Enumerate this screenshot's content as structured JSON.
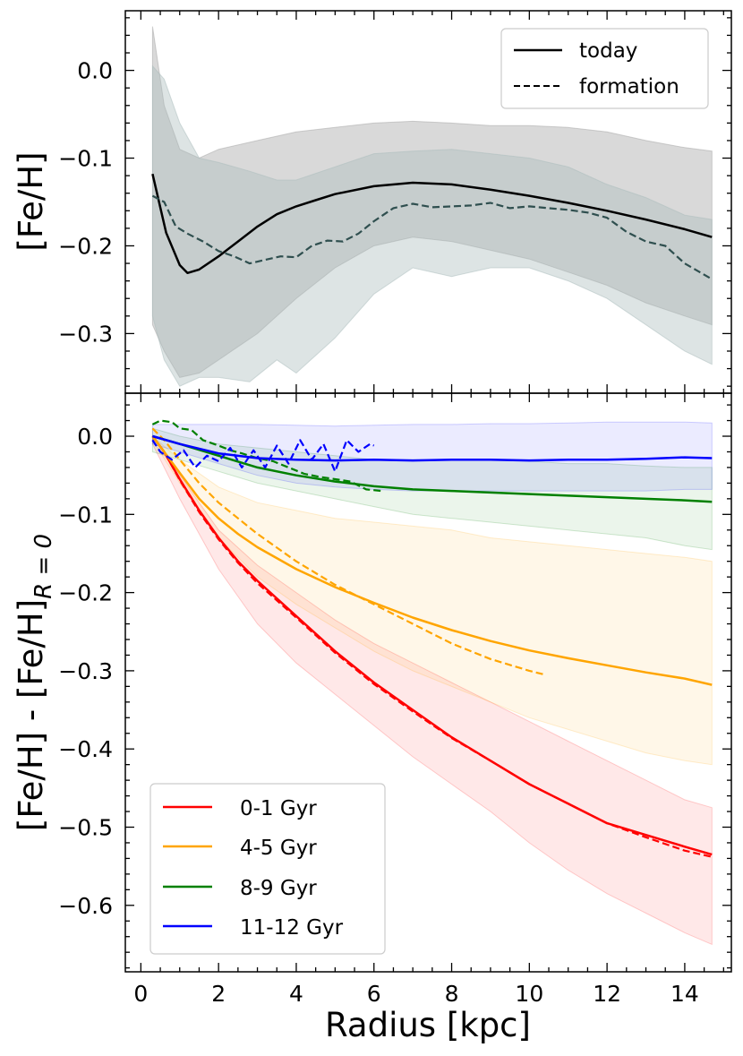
{
  "chart_data": [
    {
      "type": "line",
      "ylabel": "[Fe/H]",
      "xlim": [
        -0.4,
        15.2
      ],
      "ylim": [
        -0.368,
        0.068
      ],
      "xticks": [
        0,
        2,
        4,
        6,
        8,
        10,
        12,
        14
      ],
      "yticks": [
        {
          "value": 0.0,
          "label": "0.0"
        },
        {
          "value": -0.1,
          "label": "−0.1"
        },
        {
          "value": -0.2,
          "label": "−0.2"
        },
        {
          "value": -0.3,
          "label": "−0.3"
        }
      ],
      "grid": false,
      "legend": {
        "position": "upper-right",
        "entries": [
          {
            "label": "today",
            "color": "#000000",
            "dash": "solid"
          },
          {
            "label": "formation",
            "color": "#000000",
            "dash": "dashed"
          }
        ]
      },
      "bands": [
        {
          "color": "#aaaaaa",
          "opacity": 0.45,
          "x": [
            0.3,
            0.6,
            1.0,
            1.5,
            2.0,
            3.0,
            4.0,
            5.0,
            6.0,
            7.0,
            8.0,
            9.0,
            10.0,
            11.0,
            12.0,
            13.0,
            14.0,
            14.7
          ],
          "upper": [
            0.05,
            -0.04,
            -0.09,
            -0.1,
            -0.09,
            -0.08,
            -0.07,
            -0.065,
            -0.06,
            -0.058,
            -0.06,
            -0.063,
            -0.063,
            -0.065,
            -0.07,
            -0.08,
            -0.088,
            -0.092
          ],
          "lower": [
            -0.29,
            -0.32,
            -0.35,
            -0.345,
            -0.33,
            -0.3,
            -0.26,
            -0.225,
            -0.2,
            -0.19,
            -0.195,
            -0.205,
            -0.215,
            -0.23,
            -0.245,
            -0.265,
            -0.28,
            -0.29
          ]
        },
        {
          "color": "#aabbbb",
          "opacity": 0.4,
          "x": [
            0.3,
            0.6,
            1.0,
            1.5,
            2.0,
            2.8,
            3.5,
            4.0,
            5.0,
            6.0,
            7.0,
            8.0,
            9.0,
            10.0,
            11.0,
            12.0,
            13.0,
            14.0,
            14.7
          ],
          "upper": [
            0.005,
            -0.01,
            -0.06,
            -0.1,
            -0.105,
            -0.115,
            -0.125,
            -0.125,
            -0.11,
            -0.095,
            -0.092,
            -0.09,
            -0.095,
            -0.1,
            -0.11,
            -0.13,
            -0.145,
            -0.165,
            -0.17
          ],
          "lower": [
            -0.28,
            -0.33,
            -0.36,
            -0.35,
            -0.35,
            -0.355,
            -0.33,
            -0.345,
            -0.305,
            -0.255,
            -0.225,
            -0.235,
            -0.225,
            -0.225,
            -0.24,
            -0.26,
            -0.29,
            -0.32,
            -0.335
          ]
        }
      ],
      "series": [
        {
          "name": "today",
          "color": "#000000",
          "dash": "solid",
          "x": [
            0.3,
            0.65,
            1.0,
            1.2,
            1.5,
            2.0,
            2.5,
            3.0,
            3.5,
            4.0,
            4.5,
            5.0,
            6.0,
            7.0,
            8.0,
            9.0,
            10.0,
            11.0,
            12.0,
            13.0,
            14.0,
            14.7
          ],
          "y": [
            -0.118,
            -0.185,
            -0.222,
            -0.231,
            -0.227,
            -0.212,
            -0.195,
            -0.178,
            -0.164,
            -0.155,
            -0.148,
            -0.141,
            -0.132,
            -0.128,
            -0.13,
            -0.136,
            -0.143,
            -0.151,
            -0.16,
            -0.17,
            -0.181,
            -0.19
          ]
        },
        {
          "name": "formation",
          "color": "#2f4f4f",
          "dash": "dashed",
          "x": [
            0.3,
            0.6,
            0.9,
            1.2,
            1.6,
            2.0,
            2.4,
            2.8,
            3.2,
            3.6,
            4.0,
            4.4,
            4.8,
            5.2,
            5.6,
            6.0,
            6.5,
            7.0,
            7.5,
            8.0,
            8.5,
            9.0,
            9.5,
            10.0,
            10.5,
            11.0,
            11.5,
            12.0,
            12.5,
            13.0,
            13.5,
            14.0,
            14.7
          ],
          "y": [
            -0.143,
            -0.15,
            -0.178,
            -0.186,
            -0.195,
            -0.206,
            -0.212,
            -0.22,
            -0.216,
            -0.212,
            -0.213,
            -0.2,
            -0.194,
            -0.195,
            -0.186,
            -0.172,
            -0.157,
            -0.152,
            -0.156,
            -0.155,
            -0.154,
            -0.151,
            -0.157,
            -0.155,
            -0.157,
            -0.159,
            -0.162,
            -0.168,
            -0.184,
            -0.195,
            -0.2,
            -0.22,
            -0.238
          ]
        }
      ]
    },
    {
      "type": "line",
      "xlabel": "Radius [kpc]",
      "ylabel": "[Fe/H] - [Fe/H]",
      "ylabel_sub": "R = 0",
      "xlim": [
        -0.4,
        15.2
      ],
      "ylim": [
        -0.685,
        0.055
      ],
      "xticks": [
        0,
        2,
        4,
        6,
        8,
        10,
        12,
        14
      ],
      "yticks": [
        {
          "value": 0.0,
          "label": "0.0"
        },
        {
          "value": -0.1,
          "label": "−0.1"
        },
        {
          "value": -0.2,
          "label": "−0.2"
        },
        {
          "value": -0.3,
          "label": "−0.3"
        },
        {
          "value": -0.4,
          "label": "−0.4"
        },
        {
          "value": -0.5,
          "label": "−0.5"
        },
        {
          "value": -0.6,
          "label": "−0.6"
        }
      ],
      "grid": false,
      "legend": {
        "position": "lower-left",
        "entries": [
          {
            "label": "0-1 Gyr",
            "color": "#ff0000"
          },
          {
            "label": "4-5 Gyr",
            "color": "#ffa500"
          },
          {
            "label": "8-9 Gyr",
            "color": "#008000"
          },
          {
            "label": "11-12 Gyr",
            "color": "#0000ff"
          }
        ]
      },
      "bands": [
        {
          "color": "#ff0000",
          "opacity": 0.09,
          "x": [
            0.3,
            1.0,
            2.0,
            3.0,
            4.0,
            5.0,
            6.0,
            7.0,
            8.0,
            9.0,
            10.0,
            11.0,
            12.0,
            13.0,
            14.0,
            14.7
          ],
          "upper": [
            0.0,
            -0.05,
            -0.12,
            -0.165,
            -0.2,
            -0.235,
            -0.265,
            -0.29,
            -0.315,
            -0.34,
            -0.365,
            -0.39,
            -0.415,
            -0.44,
            -0.465,
            -0.475
          ],
          "lower": [
            -0.01,
            -0.08,
            -0.17,
            -0.24,
            -0.29,
            -0.33,
            -0.37,
            -0.41,
            -0.445,
            -0.48,
            -0.52,
            -0.555,
            -0.585,
            -0.61,
            -0.635,
            -0.65
          ]
        },
        {
          "color": "#ffa500",
          "opacity": 0.09,
          "x": [
            0.3,
            1.0,
            2.0,
            3.0,
            4.0,
            5.0,
            6.0,
            7.0,
            8.0,
            9.0,
            10.0,
            11.0,
            12.0,
            13.0,
            14.0,
            14.7
          ],
          "upper": [
            0.0,
            -0.03,
            -0.065,
            -0.085,
            -0.095,
            -0.105,
            -0.11,
            -0.115,
            -0.12,
            -0.13,
            -0.135,
            -0.14,
            -0.145,
            -0.15,
            -0.155,
            -0.16
          ],
          "lower": [
            -0.005,
            -0.06,
            -0.13,
            -0.18,
            -0.215,
            -0.245,
            -0.275,
            -0.3,
            -0.32,
            -0.34,
            -0.36,
            -0.375,
            -0.39,
            -0.405,
            -0.415,
            -0.42
          ]
        },
        {
          "color": "#008000",
          "opacity": 0.08,
          "x": [
            0.3,
            1.0,
            2.0,
            3.0,
            4.0,
            5.0,
            6.0,
            7.0,
            8.0,
            9.0,
            10.0,
            11.0,
            12.0,
            13.0,
            14.0,
            14.7
          ],
          "upper": [
            0.01,
            0.0,
            -0.01,
            -0.015,
            -0.02,
            -0.025,
            -0.03,
            -0.03,
            -0.03,
            -0.03,
            -0.032,
            -0.035,
            -0.035,
            -0.038,
            -0.04,
            -0.04
          ],
          "lower": [
            -0.02,
            -0.03,
            -0.045,
            -0.06,
            -0.07,
            -0.08,
            -0.09,
            -0.1,
            -0.105,
            -0.11,
            -0.115,
            -0.12,
            -0.125,
            -0.13,
            -0.14,
            -0.145
          ]
        },
        {
          "color": "#0000ff",
          "opacity": 0.08,
          "x": [
            0.3,
            1.0,
            2.0,
            3.0,
            4.0,
            5.0,
            6.0,
            7.0,
            8.0,
            9.0,
            10.0,
            11.0,
            12.0,
            13.0,
            14.0,
            14.7
          ],
          "upper": [
            0.015,
            0.015,
            0.015,
            0.015,
            0.014,
            0.013,
            0.014,
            0.015,
            0.015,
            0.016,
            0.016,
            0.017,
            0.018,
            0.018,
            0.018,
            0.017
          ],
          "lower": [
            -0.01,
            -0.02,
            -0.035,
            -0.05,
            -0.06,
            -0.065,
            -0.068,
            -0.07,
            -0.07,
            -0.07,
            -0.07,
            -0.07,
            -0.07,
            -0.07,
            -0.068,
            -0.068
          ]
        }
      ],
      "series": [
        {
          "name": "0-1 Gyr",
          "color": "#ff0000",
          "dash": "solid",
          "x": [
            0.3,
            0.6,
            1.0,
            1.5,
            2.0,
            2.5,
            3.0,
            4.0,
            5.0,
            6.0,
            7.0,
            8.0,
            9.0,
            10.0,
            11.0,
            12.0,
            13.0,
            14.0,
            14.7
          ],
          "y": [
            0.0,
            -0.02,
            -0.055,
            -0.095,
            -0.13,
            -0.16,
            -0.185,
            -0.23,
            -0.275,
            -0.315,
            -0.35,
            -0.385,
            -0.415,
            -0.445,
            -0.47,
            -0.495,
            -0.51,
            -0.525,
            -0.535
          ]
        },
        {
          "name": "0-1 Gyr formation",
          "color": "#ff0000",
          "dash": "dashed",
          "x": [
            0.3,
            0.6,
            1.0,
            1.5,
            2.0,
            2.5,
            3.0,
            4.0,
            5.0,
            6.0,
            7.0,
            8.0,
            9.0,
            10.0,
            11.0,
            12.0,
            13.0,
            14.0,
            14.7
          ],
          "y": [
            0.0,
            -0.02,
            -0.056,
            -0.097,
            -0.132,
            -0.162,
            -0.188,
            -0.232,
            -0.277,
            -0.317,
            -0.352,
            -0.386,
            -0.415,
            -0.445,
            -0.47,
            -0.495,
            -0.513,
            -0.53,
            -0.538
          ]
        },
        {
          "name": "4-5 Gyr",
          "color": "#ffa500",
          "dash": "solid",
          "x": [
            0.3,
            0.6,
            1.0,
            1.5,
            2.0,
            2.5,
            3.0,
            4.0,
            5.0,
            6.0,
            7.0,
            8.0,
            9.0,
            10.0,
            11.0,
            12.0,
            13.0,
            14.0,
            14.7
          ],
          "y": [
            0.0,
            -0.02,
            -0.047,
            -0.08,
            -0.105,
            -0.125,
            -0.142,
            -0.17,
            -0.193,
            -0.213,
            -0.232,
            -0.248,
            -0.262,
            -0.274,
            -0.284,
            -0.293,
            -0.302,
            -0.31,
            -0.318
          ]
        },
        {
          "name": "4-5 Gyr formation",
          "color": "#ffa500",
          "dash": "dashed",
          "x": [
            0.3,
            0.6,
            1.0,
            1.5,
            2.0,
            2.5,
            3.0,
            4.0,
            5.0,
            6.0,
            7.0,
            8.0,
            9.0,
            10.0,
            10.4
          ],
          "y": [
            0.01,
            -0.005,
            -0.03,
            -0.06,
            -0.085,
            -0.105,
            -0.125,
            -0.16,
            -0.19,
            -0.215,
            -0.24,
            -0.265,
            -0.285,
            -0.3,
            -0.305
          ]
        },
        {
          "name": "8-9 Gyr",
          "color": "#008000",
          "dash": "solid",
          "x": [
            0.3,
            1.0,
            2.0,
            3.0,
            4.0,
            5.0,
            6.0,
            7.0,
            8.0,
            9.0,
            10.0,
            11.0,
            12.0,
            13.0,
            14.0,
            14.7
          ],
          "y": [
            0.0,
            -0.01,
            -0.025,
            -0.04,
            -0.05,
            -0.058,
            -0.064,
            -0.068,
            -0.07,
            -0.072,
            -0.074,
            -0.076,
            -0.078,
            -0.08,
            -0.082,
            -0.084
          ]
        },
        {
          "name": "8-9 Gyr formation",
          "color": "#008000",
          "dash": "dashed",
          "x": [
            0.3,
            0.5,
            0.8,
            1.0,
            1.3,
            1.6,
            2.0,
            2.3,
            2.6,
            3.0,
            3.4,
            3.8,
            4.2,
            4.6,
            5.0,
            5.4,
            5.8,
            6.2
          ],
          "y": [
            0.015,
            0.02,
            0.018,
            0.01,
            0.008,
            -0.005,
            -0.012,
            -0.018,
            -0.022,
            -0.028,
            -0.032,
            -0.04,
            -0.048,
            -0.052,
            -0.055,
            -0.058,
            -0.068,
            -0.07
          ]
        },
        {
          "name": "11-12 Gyr",
          "color": "#0000ff",
          "dash": "solid",
          "x": [
            0.3,
            1.0,
            2.0,
            3.0,
            4.0,
            5.0,
            6.0,
            7.0,
            8.0,
            9.0,
            10.0,
            11.0,
            12.0,
            13.0,
            14.0,
            14.7
          ],
          "y": [
            0.0,
            -0.01,
            -0.022,
            -0.028,
            -0.03,
            -0.031,
            -0.03,
            -0.031,
            -0.03,
            -0.03,
            -0.031,
            -0.03,
            -0.03,
            -0.029,
            -0.027,
            -0.028
          ]
        },
        {
          "name": "11-12 Gyr formation",
          "color": "#0000ff",
          "dash": "dashed",
          "x": [
            0.3,
            0.5,
            0.8,
            1.1,
            1.4,
            1.7,
            2.0,
            2.3,
            2.6,
            2.9,
            3.2,
            3.5,
            3.8,
            4.1,
            4.4,
            4.7,
            5.0,
            5.3,
            5.6,
            5.9,
            6.0
          ],
          "y": [
            -0.005,
            -0.02,
            -0.03,
            -0.018,
            -0.04,
            -0.025,
            -0.032,
            -0.015,
            -0.04,
            -0.018,
            -0.04,
            -0.012,
            -0.035,
            -0.005,
            -0.03,
            -0.01,
            -0.045,
            -0.005,
            -0.02,
            -0.01,
            -0.012
          ]
        }
      ]
    }
  ]
}
